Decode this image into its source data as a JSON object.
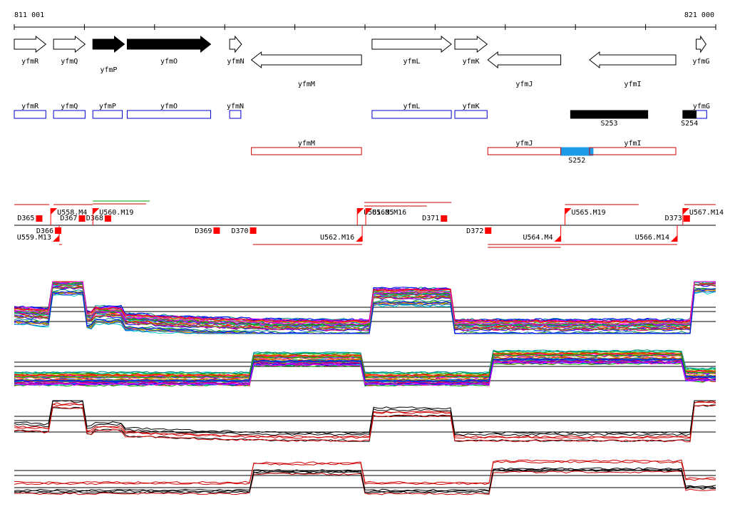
{
  "ruler": {
    "start_label": "811 001",
    "end_label": "821 000",
    "start_bp": 811001,
    "end_bp": 821000
  },
  "genes": [
    {
      "name": "yfmR",
      "start": 811001,
      "end": 811451,
      "strand": "+",
      "fill": "white"
    },
    {
      "name": "yfmQ",
      "start": 811561,
      "end": 812011,
      "strand": "+",
      "fill": "white"
    },
    {
      "name": "yfmP",
      "start": 812121,
      "end": 812571,
      "strand": "+",
      "fill": "black"
    },
    {
      "name": "yfmO",
      "start": 812611,
      "end": 813801,
      "strand": "+",
      "fill": "black"
    },
    {
      "name": "yfmN",
      "start": 814071,
      "end": 814241,
      "strand": "+",
      "fill": "white"
    },
    {
      "name": "yfmM",
      "start": 814381,
      "end": 815951,
      "strand": "-",
      "fill": "white"
    },
    {
      "name": "yfmL",
      "start": 816101,
      "end": 817231,
      "strand": "+",
      "fill": "white"
    },
    {
      "name": "yfmK",
      "start": 817281,
      "end": 817741,
      "strand": "+",
      "fill": "white"
    },
    {
      "name": "yfmJ",
      "start": 817751,
      "end": 818791,
      "strand": "-",
      "fill": "white"
    },
    {
      "name": "yfmI",
      "start": 819201,
      "end": 820431,
      "strand": "-",
      "fill": "white"
    },
    {
      "name": "yfmG",
      "start": 820721,
      "end": 820861,
      "strand": "+",
      "fill": "white"
    }
  ],
  "gene_bars_upper": [
    {
      "name": "yfmR",
      "start": 811001,
      "end": 811451,
      "color": "#0000cc"
    },
    {
      "name": "yfmQ",
      "start": 811561,
      "end": 812011,
      "color": "#0000cc"
    },
    {
      "name": "yfmP",
      "start": 812121,
      "end": 812541,
      "color": "#0000cc"
    },
    {
      "name": "yfmO",
      "start": 812611,
      "end": 813801,
      "color": "#0000cc"
    },
    {
      "name": "yfmN",
      "start": 814071,
      "end": 814231,
      "color": "#0000cc"
    },
    {
      "name": "yfmL",
      "start": 816101,
      "end": 817231,
      "color": "#0000cc"
    },
    {
      "name": "yfmK",
      "start": 817281,
      "end": 817741,
      "color": "#0000cc"
    },
    {
      "name": "yfmG",
      "start": 820721,
      "end": 820871,
      "color": "#0000cc"
    }
  ],
  "gene_bars_lower": [
    {
      "name": "yfmM",
      "start": 814381,
      "end": 815951,
      "color": "#cc0000"
    },
    {
      "name": "yfmJ",
      "start": 817751,
      "end": 818791,
      "color": "#cc0000"
    },
    {
      "name": "yfmI",
      "start": 819201,
      "end": 820431,
      "color": "#cc0000"
    }
  ],
  "segments": [
    {
      "name": "S253",
      "start": 818931,
      "end": 820031,
      "row": "upper",
      "color": "#000000"
    },
    {
      "name": "S254",
      "start": 820531,
      "end": 820721,
      "row": "upper",
      "color": "#000000"
    },
    {
      "name": "S252",
      "start": 818791,
      "end": 819251,
      "row": "lower",
      "color": "#1e9be6"
    }
  ],
  "features_above": [
    {
      "name": "D365",
      "pos": 811351,
      "type": "square"
    },
    {
      "name": "U558.M4",
      "pos": 811521,
      "type": "flag"
    },
    {
      "name": "D367",
      "pos": 811961,
      "type": "square"
    },
    {
      "name": "D368",
      "pos": 812331,
      "type": "square"
    },
    {
      "name": "U560.M19",
      "pos": 812121,
      "type": "flag"
    },
    {
      "name": "U561.M5",
      "pos": 815891,
      "type": "flag"
    },
    {
      "name": "U563.M16",
      "pos": 816011,
      "type": "flag"
    },
    {
      "name": "D371",
      "pos": 817121,
      "type": "square"
    },
    {
      "name": "U565.M19",
      "pos": 818851,
      "type": "flag"
    },
    {
      "name": "D373",
      "pos": 820581,
      "type": "square"
    },
    {
      "name": "U567.M14",
      "pos": 820531,
      "type": "flag"
    }
  ],
  "features_below": [
    {
      "name": "U559.M13",
      "pos": 811641,
      "type": "flag"
    },
    {
      "name": "D366",
      "pos": 811621,
      "type": "square"
    },
    {
      "name": "D369",
      "pos": 813881,
      "type": "square"
    },
    {
      "name": "D370",
      "pos": 814401,
      "type": "square"
    },
    {
      "name": "U562.M16",
      "pos": 815961,
      "type": "flag"
    },
    {
      "name": "D372",
      "pos": 817751,
      "type": "square"
    },
    {
      "name": "U564.M4",
      "pos": 818791,
      "type": "flag"
    },
    {
      "name": "U566.M14",
      "pos": 820451,
      "type": "flag"
    }
  ],
  "colors": {
    "gene_outline": "#000000",
    "upper_bar": "#0000cc",
    "lower_bar": "#cc0000",
    "feature": "#ff0000",
    "segment_blue": "#1e9be6"
  }
}
